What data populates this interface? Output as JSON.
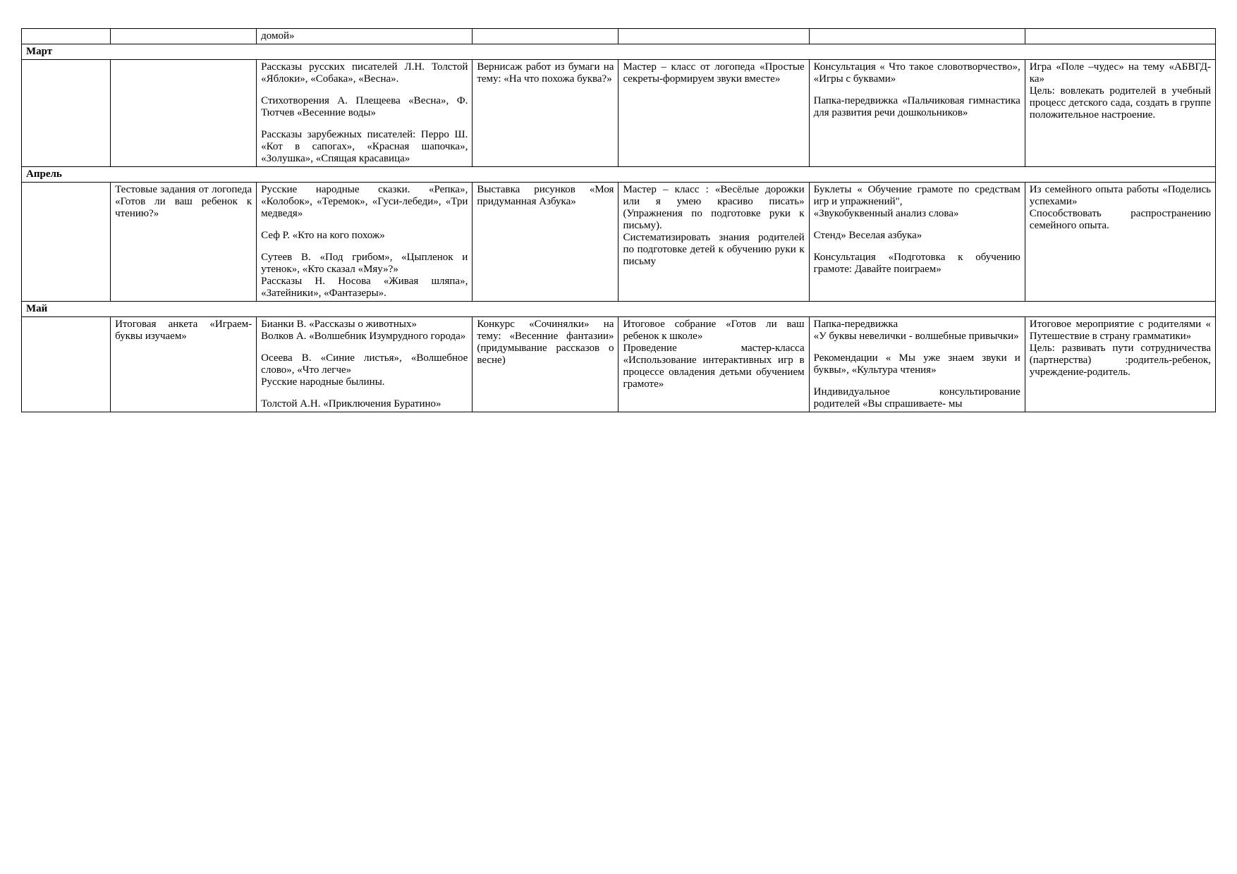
{
  "table": {
    "col_widths_pct": [
      7,
      11.5,
      17,
      11.5,
      15,
      17,
      15
    ],
    "border_color": "#000000",
    "background_color": "#ffffff",
    "text_color": "#000000",
    "font_family": "Times New Roman",
    "font_size_pt": 11,
    "rows": [
      {
        "cells": [
          {
            "text": ""
          },
          {
            "text": ""
          },
          {
            "text": "домой»"
          },
          {
            "text": ""
          },
          {
            "text": ""
          },
          {
            "text": ""
          },
          {
            "text": ""
          }
        ]
      },
      {
        "month": "Март"
      },
      {
        "cells": [
          {
            "text": ""
          },
          {
            "text": ""
          },
          {
            "paragraphs": [
              "Рассказы русских писателей Л.Н. Толстой «Яблоки», «Собака», «Весна».",
              "Стихотворения А. Плещеева «Весна», Ф. Тютчев «Весенние воды»",
              "Рассказы зарубежных писателей: Перро Ш. «Кот в сапогах», «Красная шапочка», «Золушка», «Спящая красавица»"
            ]
          },
          {
            "text": "Вернисаж работ из бумаги на тему: «На что похожа буква?»"
          },
          {
            "text": "Мастер – класс от логопеда «Простые секреты-формируем звуки вместе»"
          },
          {
            "paragraphs": [
              "Консультация « Что такое словотворчество», «Игры с буквами»",
              "Папка-передвижка «Пальчиковая гимнастика для развития речи дошкольников»"
            ]
          },
          {
            "text": " Игра «Поле –чудес» на тему «АБВГД-ка»\nЦель: вовлекать родителей в учебный процесс детского сада, создать в группе положительное настроение."
          }
        ]
      },
      {
        "month": "Апрель"
      },
      {
        "cells": [
          {
            "text": ""
          },
          {
            "text": "Тестовые задания от логопеда «Готов ли ваш ребенок к чтению?»"
          },
          {
            "paragraphs": [
              "Русские народные сказки. «Репка», «Колобок», «Теремок», «Гуси-лебеди», «Три медведя»",
              " Сеф Р. «Кто на кого похож»",
              " Сутеев В. «Под грибом», «Цыпленок и утенок», «Кто сказал «Мяу»?»\n Рассказы Н. Носова «Живая шляпа», «Затейники», «Фантазеры»."
            ]
          },
          {
            "text": "Выставка рисунков «Моя придуманная Азбука»"
          },
          {
            "text": "Мастер – класс : «Весёлые дорожки или я умею красиво писать» (Упражнения по подготовке руки к письму).\nСистематизировать знания родителей по подготовке детей к обучению руки к письму"
          },
          {
            "paragraphs": [
              "Буклеты « Обучение грамоте по средствам игр и упражнений\",\n«Звукобуквенный анализ слова»",
              "Стенд» Веселая азбука»",
              "Консультация «Подготовка к обучению грамоте: Давайте поиграем»"
            ]
          },
          {
            "text": "Из семейного опыта работы «Поделись успехами»\nСпособствовать распространению семейного опыта."
          }
        ]
      },
      {
        "month": "Май"
      },
      {
        "cells": [
          {
            "text": ""
          },
          {
            "text": "Итоговая анкета «Играем-буквы изучаем»"
          },
          {
            "paragraphs": [
              "Бианки В. «Рассказы о животных»\n Волков А. «Волшебник Изумрудного города»",
              "Осеева В. «Синие листья», «Волшебное слово», «Что легче»\nРусские народные былины.",
              " Толстой А.Н. «Приключения Буратино»"
            ]
          },
          {
            "text": "Конкурс «Сочинялки» на тему: «Весенние фантазии» (придумывание рассказов о весне)"
          },
          {
            "text": "Итоговое собрание «Готов ли ваш ребенок к школе»\nПроведение мастер-класса «Использование интерактивных игр в процессе овладения детьми обучением грамоте»"
          },
          {
            "paragraphs": [
              "Папка-передвижка\n«У буквы невелички - волшебные привычки»",
              "Рекомендации « Мы уже знаем звуки и буквы», «Культура чтения»",
              "Индивидуальное консультирование родителей «Вы спрашиваете- мы"
            ]
          },
          {
            "text": " Итоговое мероприятие с родителями « Путешествие в страну грамматики»\nЦель: развивать пути сотрудничества (партнерства) :родитель-ребенок, учреждение-родитель."
          }
        ]
      }
    ]
  }
}
